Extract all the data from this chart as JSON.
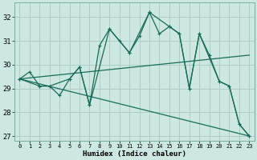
{
  "xlabel": "Humidex (Indice chaleur)",
  "bg_color": "#cce8e0",
  "grid_color": "#aacfc8",
  "line_color": "#1a6b5a",
  "xlim": [
    -0.5,
    23.5
  ],
  "ylim": [
    26.8,
    32.6
  ],
  "xticks": [
    0,
    1,
    2,
    3,
    4,
    5,
    6,
    7,
    8,
    9,
    10,
    11,
    12,
    13,
    14,
    15,
    16,
    17,
    18,
    19,
    20,
    21,
    22,
    23
  ],
  "yticks": [
    27,
    28,
    29,
    30,
    31,
    32
  ],
  "line1_x": [
    0,
    1,
    2,
    3,
    4,
    5,
    6,
    7,
    8,
    9,
    10,
    11,
    12,
    13,
    14,
    15,
    16,
    17,
    18,
    19,
    20,
    21,
    22,
    23
  ],
  "line1_y": [
    29.4,
    29.7,
    29.1,
    29.1,
    28.7,
    29.4,
    29.9,
    28.3,
    30.8,
    31.5,
    31.0,
    30.5,
    31.2,
    32.2,
    31.3,
    31.6,
    31.3,
    29.0,
    31.3,
    30.4,
    29.3,
    29.1,
    27.5,
    27.0
  ],
  "line2_x": [
    0,
    2,
    3,
    5,
    6,
    7,
    9,
    11,
    13,
    15,
    16,
    17,
    18,
    20,
    21,
    22,
    23
  ],
  "line2_y": [
    29.4,
    29.1,
    29.1,
    29.4,
    29.9,
    28.3,
    31.5,
    30.5,
    32.2,
    31.6,
    31.3,
    29.0,
    31.3,
    29.3,
    29.1,
    27.5,
    27.0
  ],
  "line3_x": [
    0,
    23
  ],
  "line3_y": [
    29.4,
    27.0
  ],
  "line4_x": [
    0,
    23
  ],
  "line4_y": [
    29.4,
    30.4
  ]
}
